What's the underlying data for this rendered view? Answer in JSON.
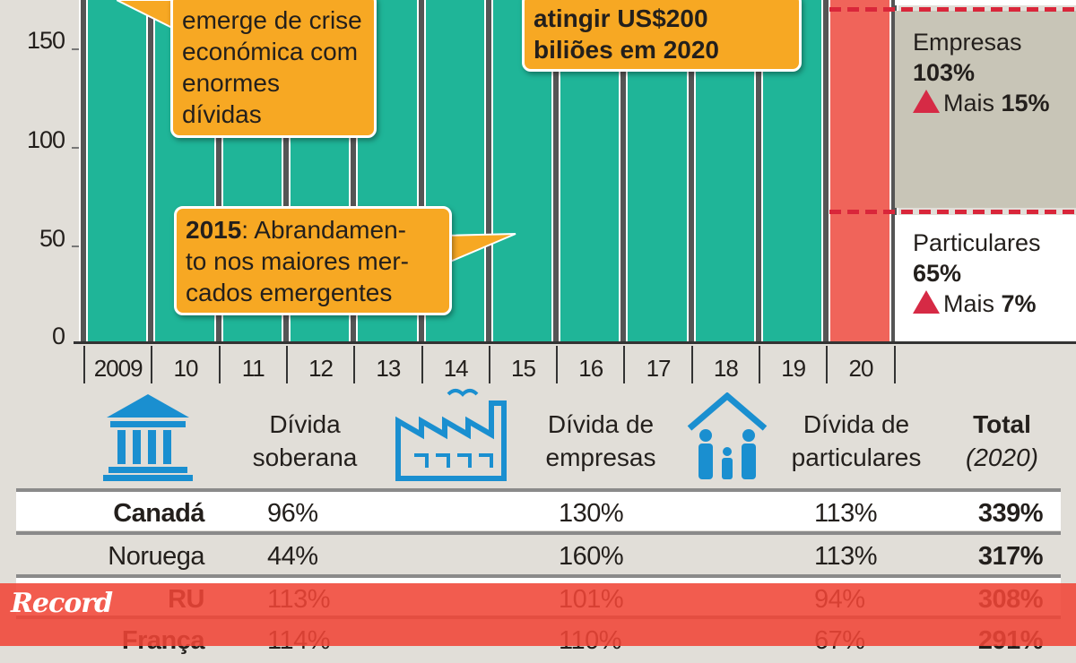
{
  "chart_data": {
    "type": "bar",
    "categories": [
      "2009",
      "10",
      "11",
      "12",
      "13",
      "14",
      "15",
      "16",
      "17",
      "18",
      "19",
      "20"
    ],
    "y_ticks": [
      0,
      50,
      100,
      150
    ],
    "bar_colors": {
      "history": "#1fb598",
      "2020": "#f0645a"
    },
    "stack_2020": [
      {
        "name": "Particulares",
        "value": 65,
        "change": "Mais 7%"
      },
      {
        "name": "Empresas",
        "value": 103,
        "change": "Mais 15%"
      }
    ],
    "grid": false
  },
  "y_labels": [
    "150",
    "100",
    "50",
    "0"
  ],
  "callouts": {
    "crisis": [
      "emerge de crise",
      "económica com",
      "enormes",
      "dívidas"
    ],
    "target": [
      "atingir US$200",
      "biliões em 2020"
    ],
    "slowdown_year": "2015",
    "slowdown_text": ": Abrandamen-",
    "slowdown_lines": [
      "to nos maiores mer-",
      "cados emergentes"
    ]
  },
  "side": {
    "empresas_label": "Empresas",
    "empresas_pct": "103%",
    "empresas_more": "Mais ",
    "empresas_change": "15%",
    "particulares_label": "Particulares",
    "particulares_pct": "65%",
    "particulares_more": "Mais ",
    "particulares_change": "7%"
  },
  "legend": {
    "sovereign": [
      "Dívida",
      "soberana"
    ],
    "companies": [
      "Dívida de",
      "empresas"
    ],
    "households": [
      "Dívida de",
      "particulares"
    ],
    "total": "Total",
    "total_year": "(2020)"
  },
  "table": [
    {
      "country": "Canadá",
      "sovereign": "96%",
      "companies": "130%",
      "households": "113%",
      "total": "339%"
    },
    {
      "country": "Noruega",
      "sovereign": "44%",
      "companies": "160%",
      "households": "113%",
      "total": "317%"
    },
    {
      "country": "RU",
      "sovereign": "113%",
      "companies": "101%",
      "households": "94%",
      "total": "308%"
    },
    {
      "country": "França",
      "sovereign": "114%",
      "companies": "110%",
      "households": "67%",
      "total": "291%"
    }
  ],
  "watermark": "Record"
}
